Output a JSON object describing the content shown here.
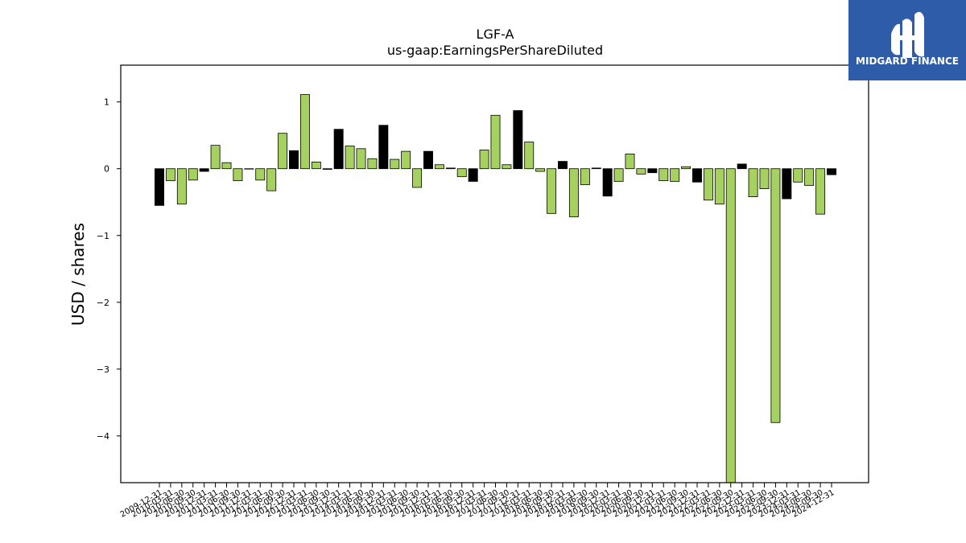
{
  "logo": {
    "text": "MIDGARD FINANCE",
    "bg_color": "#2f5ca8"
  },
  "chart_data": {
    "type": "bar",
    "title": "LGF-A",
    "subtitle": "us-gaap:EarningsPerShareDiluted",
    "ylabel": "USD / shares",
    "xlabel": "",
    "ylim": [
      -4.7,
      1.55
    ],
    "yticks": [
      1,
      0,
      -1,
      -2,
      -3,
      -4
    ],
    "colors": {
      "positive": "#a6d160",
      "negative_alt": "#000000"
    },
    "xtick_labels": [
      "2009-12-31",
      "2010-03-31",
      "2010-06-30",
      "2010-09-30",
      "2010-12-31",
      "2011-03-31",
      "2011-06-30",
      "2011-09-30",
      "2011-12-31",
      "2012-03-31",
      "2012-06-30",
      "2012-09-30",
      "2012-12-31",
      "2013-03-31",
      "2013-06-30",
      "2013-09-30",
      "2013-12-31",
      "2014-03-31",
      "2014-06-30",
      "2014-09-30",
      "2014-12-31",
      "2015-03-31",
      "2015-06-30",
      "2015-09-30",
      "2015-12-31",
      "2016-03-31",
      "2016-06-30",
      "2016-09-30",
      "2016-12-31",
      "2017-03-31",
      "2017-06-30",
      "2017-09-30",
      "2017-12-31",
      "2018-03-31",
      "2018-06-30",
      "2018-09-30",
      "2018-12-31",
      "2019-03-31",
      "2019-06-30",
      "2019-09-30",
      "2019-12-31",
      "2020-03-31",
      "2020-06-30",
      "2020-09-30",
      "2020-12-31",
      "2021-03-31",
      "2021-06-30",
      "2021-09-30",
      "2021-12-31",
      "2022-03-31",
      "2022-06-30",
      "2022-09-30",
      "2022-12-31",
      "2023-03-31",
      "2023-06-30",
      "2023-09-30",
      "2023-12-31",
      "2024-03-31",
      "2024-06-30",
      "2024-09-30",
      "2024-12-31"
    ],
    "values": [
      -0.55,
      -0.18,
      -0.53,
      -0.17,
      -0.04,
      0.35,
      0.09,
      -0.18,
      0.0,
      -0.17,
      -0.33,
      0.53,
      0.27,
      1.11,
      0.1,
      -0.01,
      0.59,
      0.34,
      0.3,
      0.15,
      0.65,
      0.14,
      0.26,
      -0.28,
      0.26,
      0.06,
      0.01,
      -0.12,
      -0.19,
      0.28,
      0.8,
      0.06,
      0.87,
      0.4,
      -0.04,
      -0.67,
      0.11,
      -0.72,
      -0.24,
      0.01,
      -0.41,
      -0.19,
      0.22,
      -0.08,
      -0.06,
      -0.18,
      -0.19,
      0.03,
      -0.2,
      -0.47,
      -0.53,
      -4.7,
      0.07,
      -0.42,
      -0.3,
      -3.8,
      -0.45,
      -0.2,
      -0.25,
      -0.68,
      -0.09
    ],
    "bar_colors": [
      "black",
      "green",
      "green",
      "green",
      "black",
      "green",
      "green",
      "green",
      "green",
      "green",
      "green",
      "green",
      "black",
      "green",
      "green",
      "green",
      "black",
      "green",
      "green",
      "green",
      "black",
      "green",
      "green",
      "green",
      "black",
      "green",
      "green",
      "green",
      "black",
      "green",
      "green",
      "green",
      "black",
      "green",
      "green",
      "green",
      "black",
      "green",
      "green",
      "green",
      "black",
      "green",
      "green",
      "green",
      "black",
      "green",
      "green",
      "green",
      "black",
      "green",
      "green",
      "green",
      "black",
      "green",
      "green",
      "green",
      "black",
      "green",
      "green",
      "green",
      "black"
    ]
  }
}
